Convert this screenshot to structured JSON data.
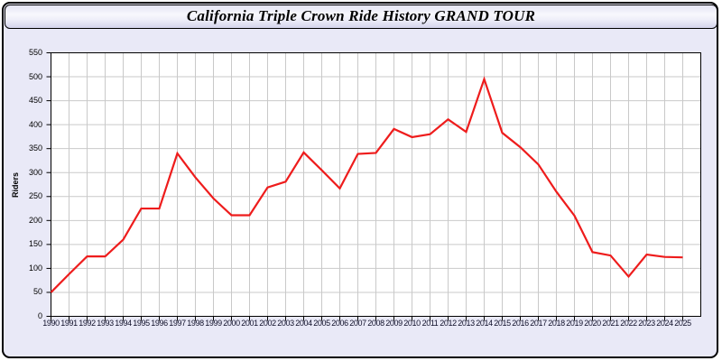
{
  "window": {
    "title": "California Triple Crown Ride History GRAND TOUR"
  },
  "colors": {
    "line": "#EE1C1C",
    "grid": "#C9C9C9",
    "plot_bg": "#FFFFFF",
    "plot_border": "#000000",
    "window_bg": "#E9E9F7",
    "tick": "#000000"
  },
  "chart_data": {
    "type": "line",
    "title": "California Triple Crown Ride History GRAND TOUR",
    "xlabel": "",
    "ylabel": "Riders",
    "ylim": [
      0,
      550
    ],
    "ytick_step": 50,
    "yticks": [
      0,
      50,
      100,
      150,
      200,
      250,
      300,
      350,
      400,
      450,
      500,
      550
    ],
    "grid": true,
    "legend": "none",
    "x": [
      1990,
      1991,
      1992,
      1993,
      1994,
      1995,
      1996,
      1997,
      1998,
      1999,
      2000,
      2001,
      2002,
      2003,
      2004,
      2005,
      2006,
      2007,
      2008,
      2009,
      2010,
      2011,
      2012,
      2013,
      2014,
      2015,
      2016,
      2017,
      2018,
      2019,
      2020,
      2021,
      2022,
      2023,
      2024,
      2025
    ],
    "series": [
      {
        "name": "Riders",
        "values": [
          50,
          88,
          125,
          125,
          160,
          225,
          225,
          340,
          290,
          246,
          211,
          211,
          269,
          281,
          342,
          305,
          267,
          339,
          341,
          391,
          374,
          380,
          411,
          385,
          495,
          383,
          353,
          317,
          260,
          210,
          134,
          127,
          83,
          129,
          124,
          123
        ]
      }
    ]
  }
}
